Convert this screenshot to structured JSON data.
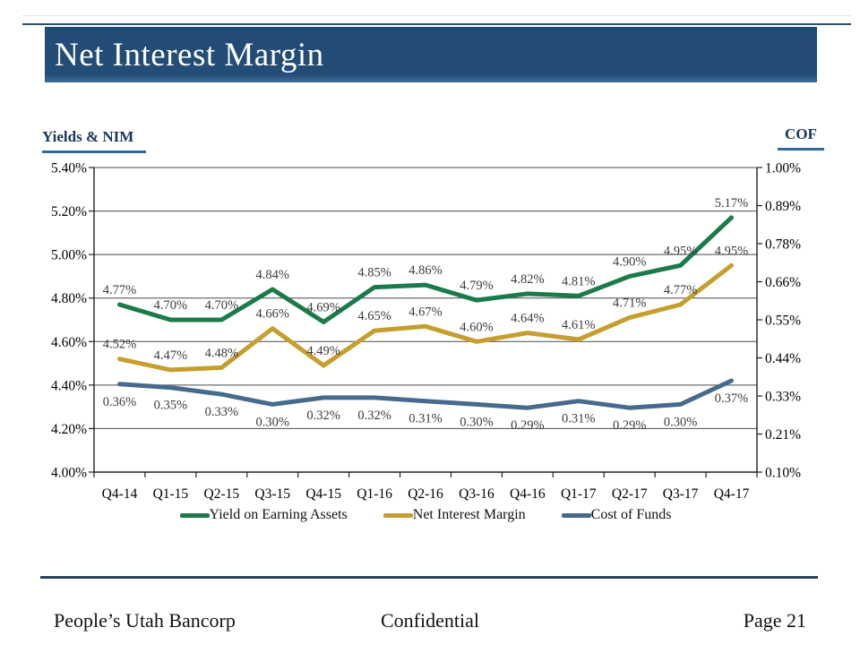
{
  "slide": {
    "title": "Net Interest Margin",
    "left_axis_title": "Yields & NIM",
    "right_axis_title": "COF",
    "footer": {
      "company": "People’s Utah Bancorp",
      "confidential": "Confidential",
      "page": "Page 21"
    }
  },
  "colors": {
    "title_bar": "#234d75",
    "heading_text": "#17375e",
    "heading_underline": "#2e6a9e",
    "grid": "#4a4a4a",
    "axis": "#222222",
    "data_label": "#3b3b3b",
    "footer_rule": "#26425c"
  },
  "chart_data": {
    "type": "line",
    "grid": true,
    "legend_position": "bottom",
    "categories": [
      "Q4-14",
      "Q1-15",
      "Q2-15",
      "Q3-15",
      "Q4-15",
      "Q1-16",
      "Q2-16",
      "Q3-16",
      "Q4-16",
      "Q1-17",
      "Q2-17",
      "Q3-17",
      "Q4-17"
    ],
    "series": [
      {
        "name": "Yield on Earning Assets",
        "axis": "left",
        "color": "#1a7a4a",
        "values": [
          4.77,
          4.7,
          4.7,
          4.84,
          4.69,
          4.85,
          4.86,
          4.79,
          4.82,
          4.81,
          4.9,
          4.95,
          5.17
        ]
      },
      {
        "name": "Net Interest Margin",
        "axis": "left",
        "color": "#c59e2e",
        "values": [
          4.52,
          4.47,
          4.48,
          4.66,
          4.49,
          4.65,
          4.67,
          4.6,
          4.64,
          4.61,
          4.71,
          4.77,
          4.95
        ]
      },
      {
        "name": "Cost of Funds",
        "axis": "right",
        "color": "#466a8e",
        "values": [
          0.36,
          0.35,
          0.33,
          0.3,
          0.32,
          0.32,
          0.31,
          0.3,
          0.29,
          0.31,
          0.29,
          0.3,
          0.37
        ]
      }
    ],
    "left_axis": {
      "min": 4.0,
      "max": 5.4,
      "ticks": [
        "5.40%",
        "5.20%",
        "5.00%",
        "4.80%",
        "4.60%",
        "4.40%",
        "4.20%",
        "4.00%"
      ]
    },
    "right_axis": {
      "min": 0.1,
      "max": 1.0,
      "ticks": [
        "1.00%",
        "0.89%",
        "0.78%",
        "0.66%",
        "0.55%",
        "0.44%",
        "0.33%",
        "0.21%",
        "0.10%"
      ]
    }
  }
}
